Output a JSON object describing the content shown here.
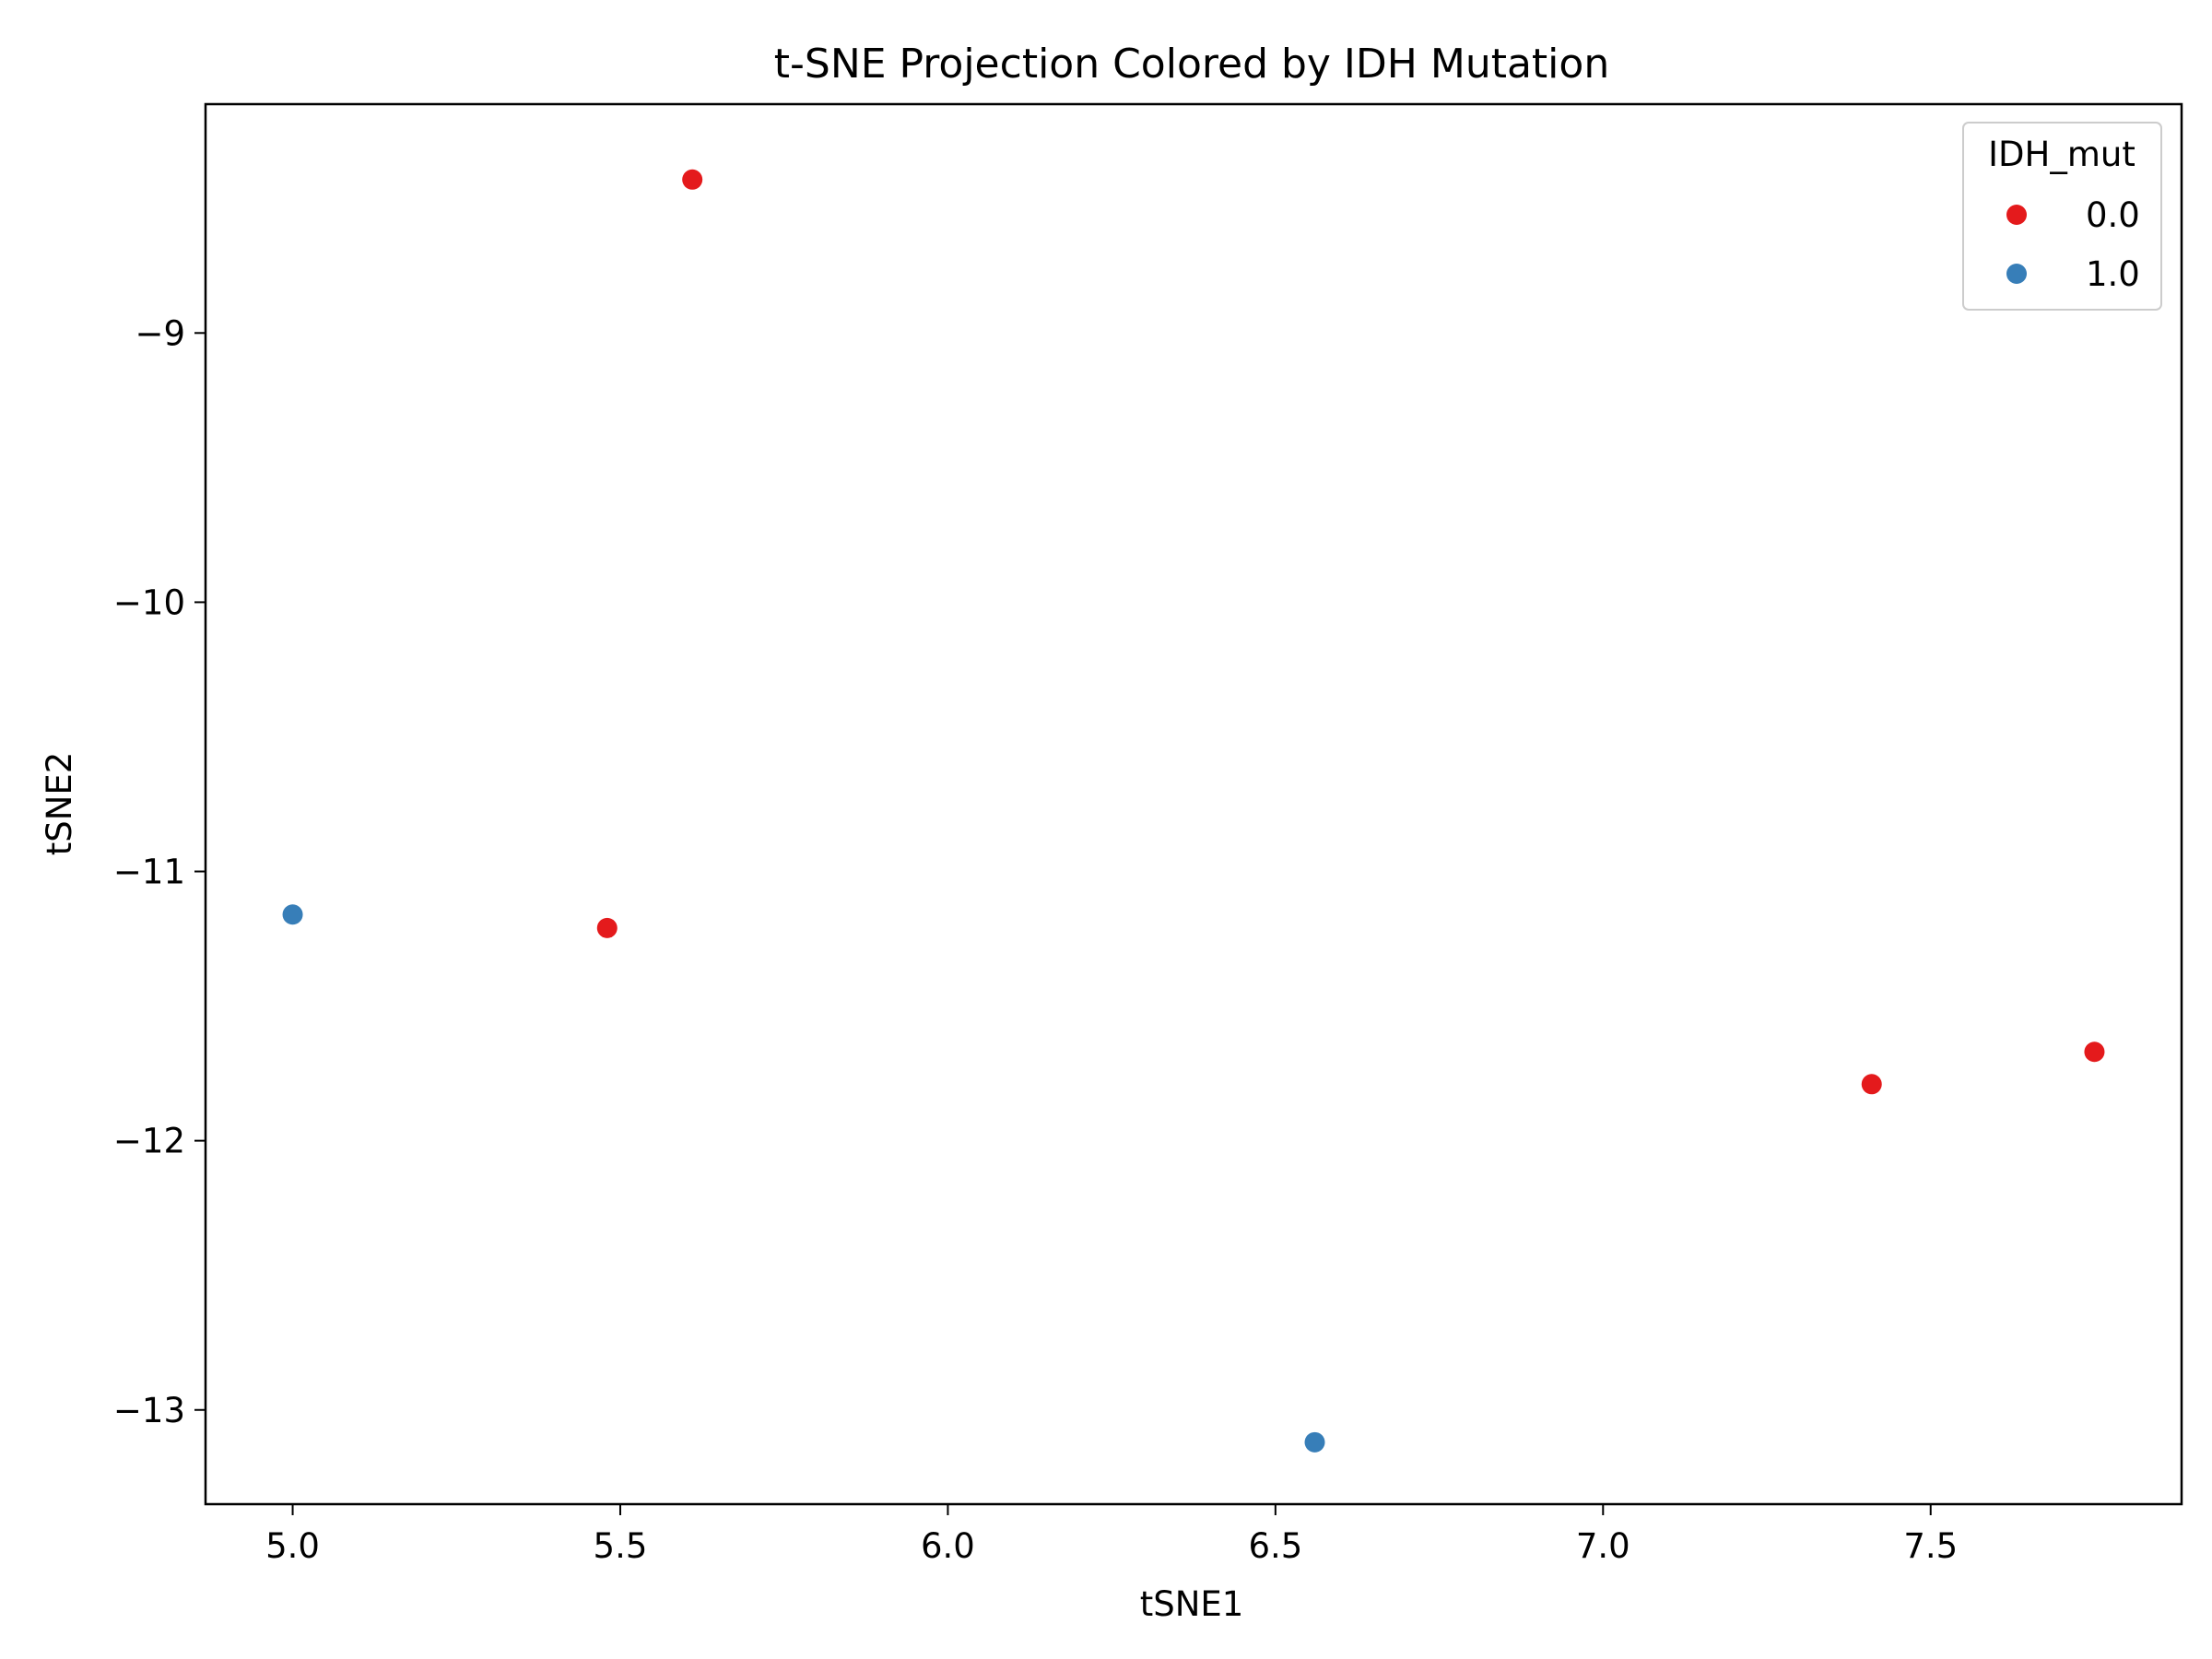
{
  "chart_data": {
    "type": "scatter",
    "title": "t-SNE Projection Colored by IDH Mutation",
    "xlabel": "tSNE1",
    "ylabel": "tSNE2",
    "xlim": [
      4.867,
      7.883
    ],
    "ylim": [
      -13.35,
      -8.15
    ],
    "xticks": [
      5.0,
      5.5,
      6.0,
      6.5,
      7.0,
      7.5
    ],
    "xtick_labels": [
      "5.0",
      "5.5",
      "6.0",
      "6.5",
      "7.0",
      "7.5"
    ],
    "yticks": [
      -9,
      -10,
      -11,
      -12,
      -13
    ],
    "ytick_labels": [
      "−9",
      "−10",
      "−11",
      "−12",
      "−13"
    ],
    "grid": false,
    "legend": {
      "title": "IDH_mut",
      "position": "top-right",
      "entries": [
        "0.0",
        "1.0"
      ]
    },
    "series": [
      {
        "name": "0.0",
        "color": "#e41a1c",
        "points": [
          {
            "x": 5.61,
            "y": -8.43
          },
          {
            "x": 5.48,
            "y": -11.21
          },
          {
            "x": 7.41,
            "y": -11.79
          },
          {
            "x": 7.75,
            "y": -11.67
          }
        ]
      },
      {
        "name": "1.0",
        "color": "#377eb8",
        "points": [
          {
            "x": 5.0,
            "y": -11.16
          },
          {
            "x": 6.56,
            "y": -13.12
          }
        ]
      }
    ]
  }
}
